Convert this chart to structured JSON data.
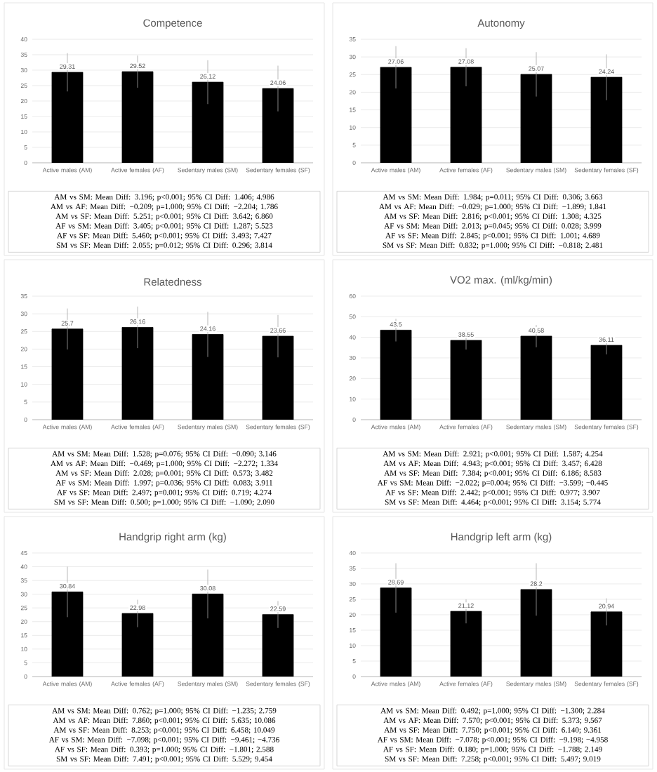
{
  "chart_data": [
    {
      "type": "bar",
      "title": "Competence",
      "categories": [
        "Active males (AM)",
        "Active females (AF)",
        "Sedentary males (SM)",
        "Sedentary females (SF)"
      ],
      "values": [
        29.31,
        29.52,
        26.12,
        24.06
      ],
      "errors": [
        6.2,
        5.2,
        7.1,
        7.4
      ],
      "color": "#000000",
      "ylim": [
        0,
        40
      ],
      "yticks": [
        0,
        5,
        10,
        15,
        20,
        25,
        30,
        35,
        40
      ],
      "grid": "y",
      "data_labels": true,
      "annotations": [
        "AM vs SM: Mean Diff: 3.196; p<0.001; 95% CI Diff: 1.406; 4.986",
        "AM vs AF: Mean Diff: −0.209; p=1.000; 95% CI Diff: −2.204; 1.786",
        "AM vs SF: Mean Diff: 5.251; p<0.001; 95% CI Diff: 3.642; 6.860",
        "AF vs SM: Mean Diff: 3.405; p<0.001; 95% CI Diff: 1.287; 5.523",
        "AF vs SF: Mean Diff: 5.460; p<0.001; 95% CI Diff: 3.493; 7.427",
        "SM vs SF: Mean Diff: 2.055; p=0.012; 95% CI Diff: 0.296; 3.814"
      ]
    },
    {
      "type": "bar",
      "title": "Autonomy",
      "categories": [
        "Active males (AM)",
        "Active females (AF)",
        "Sedentary males (SM)",
        "Sedentary females (SF)"
      ],
      "values": [
        27.06,
        27.08,
        25.07,
        24.24
      ],
      "errors": [
        6.0,
        5.4,
        6.3,
        6.5
      ],
      "color": "#000000",
      "ylim": [
        0,
        35
      ],
      "yticks": [
        0,
        5,
        10,
        15,
        20,
        25,
        30,
        35
      ],
      "grid": "y",
      "data_labels": true,
      "annotations": [
        "AM vs SM: Mean Diff: 1.984; p=0.011; 95% CI Diff: 0.306; 3.663",
        "AM vs AF: Mean Diff: −0.029; p=1.000; 95% CI Diff: −1.899; 1.841",
        "AM vs SF: Mean Diff: 2.816; p<0.001; 95% CI Diff: 1.308; 4.325",
        "AF vs SM: Mean Diff: 2.013; p=0.045; 95% CI Diff: 0.028; 3.999",
        "AF vs SF: Mean Diff: 2.845; p<0.001; 95% CI Diff: 1.001; 4.689",
        "SM vs SF: Mean Diff: 0.832; p=1.000; 95% CI Diff: −0.818; 2.481"
      ]
    },
    {
      "type": "bar",
      "title": "Relatedness",
      "categories": [
        "Active males (AM)",
        "Active females (AF)",
        "Sedentary males (SM)",
        "Sedentary females (SF)"
      ],
      "values": [
        25.7,
        26.16,
        24.16,
        23.66
      ],
      "errors": [
        5.8,
        5.9,
        6.4,
        6.0
      ],
      "color": "#000000",
      "ylim": [
        0,
        35
      ],
      "yticks": [
        0,
        5,
        10,
        15,
        20,
        25,
        30,
        35
      ],
      "grid": "y",
      "data_labels": true,
      "annotations": [
        "AM vs SM: Mean Diff: 1.528; p=0.076; 95% CI Diff: −0.090; 3.146",
        "AM vs AF: Mean Diff: −0.469; p=1.000; 95% CI Diff: −2.272; 1.334",
        "AM vs SF: Mean Diff: 2.028; p=0.001; 95% CI Diff: 0.573; 3.482",
        "AF vs SM: Mean Diff: 1.997; p=0.036; 95% CI Diff: 0.083; 3.911",
        "AF vs SF: Mean Diff: 2.497; p=0.001; 95% CI Diff: 0.719; 4.274",
        "SM vs SF: Mean Diff: 0.500; p=1.000; 95% CI Diff: −1.090; 2.090"
      ]
    },
    {
      "type": "bar",
      "title": "VO2 max. (ml/kg/min)",
      "categories": [
        "Active males (AM)",
        "Active females (AF)",
        "Sedentary males (SM)",
        "Sedentary females (SF)"
      ],
      "values": [
        43.5,
        38.55,
        40.58,
        36.11
      ],
      "errors": [
        5.5,
        4.5,
        5.4,
        4.4
      ],
      "color": "#000000",
      "ylim": [
        0,
        60
      ],
      "yticks": [
        0,
        10,
        20,
        30,
        40,
        50,
        60
      ],
      "grid": "y",
      "data_labels": true,
      "annotations": [
        "AM vs SM: Mean Diff: 2.921; p<0.001; 95% CI Diff: 1.587; 4.254",
        "AM vs AF: Mean Diff: 4.943; p<0.001; 95% CI Diff: 3.457; 6.428",
        "AM vs SF: Mean Diff: 7.384; p<0.001; 95% CI Diff: 6.186; 8.583",
        "AF vs SM: Mean Diff: −2.022; p=0.004; 95% CI Diff: −3.599; −0.445",
        "AF vs SF: Mean Diff: 2.442; p<0.001; 95% CI Diff: 0.977; 3.907",
        "SM vs SF: Mean Diff: 4.464; p<0.001; 95% CI Diff: 3.154; 5.774"
      ]
    },
    {
      "type": "bar",
      "title": "Handgrip right arm (kg)",
      "categories": [
        "Active males (AM)",
        "Active females (AF)",
        "Sedentary males (SM)",
        "Sedentary females (SF)"
      ],
      "values": [
        30.84,
        22.98,
        30.08,
        22.59
      ],
      "errors": [
        9.2,
        5.0,
        8.9,
        4.9
      ],
      "color": "#000000",
      "ylim": [
        0,
        45
      ],
      "yticks": [
        0,
        5,
        10,
        15,
        20,
        25,
        30,
        35,
        40,
        45
      ],
      "grid": "y",
      "data_labels": true,
      "annotations": [
        "AM vs SM: Mean Diff: 0.762; p=1.000; 95% CI Diff: −1.235; 2.759",
        "AM vs AF: Mean Diff: 7.860; p<0.001; 95% CI Diff: 5.635; 10.086",
        "AM vs SF: Mean Diff: 8.253; p<0.001; 95% CI Diff: 6.458; 10.049",
        "AF vs SM: Mean Diff: −7.098; p<0.001; 95% CI Diff: −9.461; −4.736",
        "AF vs SF: Mean Diff: 0.393; p=1.000; 95% CI Diff: −1.801; 2.588",
        "SM vs SF: Mean Diff: 7.491; p<0.001; 95% CI Diff: 5.529; 9.454"
      ]
    },
    {
      "type": "bar",
      "title": "Handgrip left arm (kg)",
      "categories": [
        "Active males (AM)",
        "Active females (AF)",
        "Sedentary males (SM)",
        "Sedentary females (SF)"
      ],
      "values": [
        28.69,
        21.12,
        28.2,
        20.94
      ],
      "errors": [
        8.0,
        3.9,
        8.5,
        4.4
      ],
      "color": "#000000",
      "ylim": [
        0,
        40
      ],
      "yticks": [
        0,
        5,
        10,
        15,
        20,
        25,
        30,
        35,
        40
      ],
      "grid": "y",
      "data_labels": true,
      "annotations": [
        "AM vs SM: Mean Diff: 0.492; p=1.000; 95% CI Diff: −1.300; 2.284",
        "AM vs AF: Mean Diff: 7.570; p<0.001; 95% CI Diff: 5.373; 9.567",
        "AM vs SF: Mean Diff: 7.750; p<0.001; 95% CI Diff: 6.140; 9.361",
        "AF vs SM: Mean Diff: −7.078; p<0.001; 95% CI Diff: −9.198; −4.958",
        "AF vs SF: Mean Diff: 0.180; p=1.000; 95% CI Diff: −1.788; 2.149",
        "SM vs SF: Mean Diff: 7.258; p<0.001; 95% CI Diff: 5.497; 9.019"
      ]
    }
  ]
}
